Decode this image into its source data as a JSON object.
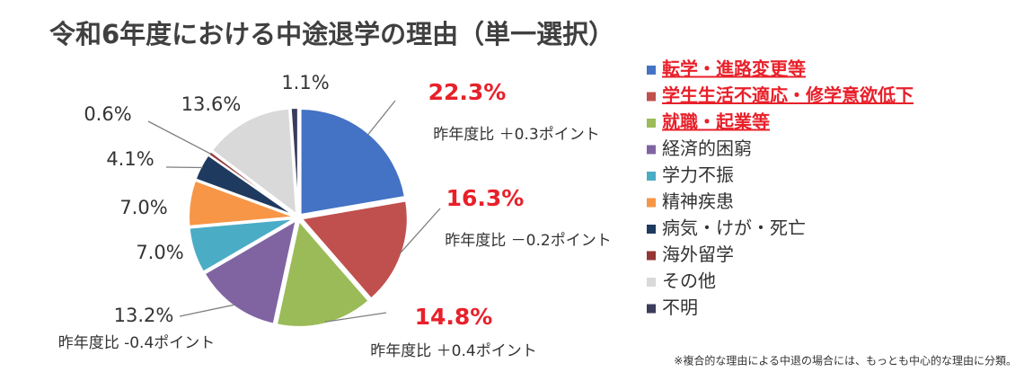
{
  "chart_data": {
    "type": "pie",
    "title": "令和6年度における中途退学の理由（単一選択）",
    "categories": [
      "転学・進路変更等",
      "学生生活不適応・修学意欲低下",
      "就職・起業等",
      "経済的困窮",
      "学力不振",
      "精神疾患",
      "病気・けが・死亡",
      "海外留学",
      "その他",
      "不明"
    ],
    "values": [
      22.3,
      16.3,
      14.8,
      13.2,
      7.0,
      7.0,
      4.1,
      0.6,
      13.6,
      1.1
    ],
    "value_labels": [
      "22.3%",
      "16.3%",
      "14.8%",
      "13.2%",
      "7.0%",
      "7.0%",
      "4.1%",
      "0.6%",
      "13.6%",
      "1.1%"
    ],
    "colors": [
      "#4472c4",
      "#c0504d",
      "#9bbb59",
      "#8064a2",
      "#4bacc6",
      "#f79646",
      "#1f3a5f",
      "#943634",
      "#d9d9d9",
      "#3b3b5a"
    ],
    "legend_highlight": [
      true,
      true,
      true,
      false,
      false,
      false,
      false,
      false,
      false,
      false
    ],
    "annotations": [
      "昨年度比 ＋0.3ポイント",
      "昨年度比 －0.2ポイント",
      "昨年度比 ＋0.4ポイント",
      "昨年度比 -0.4ポイント"
    ],
    "legend": "right",
    "footnote": "※複合的な理由による中退の場合には、もっとも中心的な理由に分類。"
  }
}
